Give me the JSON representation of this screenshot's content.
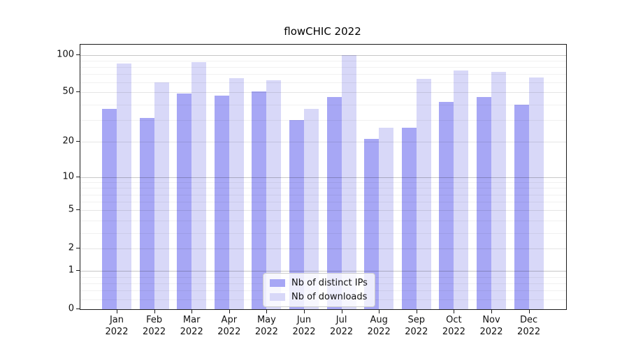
{
  "title": "flowCHIC 2022",
  "chart_data": {
    "type": "bar",
    "title": "flowCHIC 2022",
    "categories": [
      "Jan",
      "Feb",
      "Mar",
      "Apr",
      "May",
      "Jun",
      "Jul",
      "Aug",
      "Sep",
      "Oct",
      "Nov",
      "Dec"
    ],
    "category_year": "2022",
    "series": [
      {
        "name": "Nb of distinct IPs",
        "color": "#a7a7f5",
        "values": [
          37,
          31,
          49,
          47,
          51,
          30,
          46,
          21,
          26,
          42,
          46,
          40
        ]
      },
      {
        "name": "Nb of downloads",
        "color": "#d8d8f8",
        "values": [
          85,
          60,
          88,
          65,
          63,
          37,
          100,
          26,
          64,
          75,
          73,
          66
        ]
      }
    ],
    "yscale": "symlog",
    "ylim": [
      0,
      100
    ],
    "yticks": [
      0,
      1,
      2,
      5,
      10,
      20,
      50,
      100
    ],
    "decade_yticks": [
      1,
      10,
      100
    ],
    "mid_yticks": [
      2,
      5,
      20,
      50
    ],
    "minor_yticks": [
      0.2,
      0.4,
      0.6,
      0.8,
      3,
      4,
      6,
      7,
      8,
      9,
      30,
      40,
      60,
      70,
      80,
      90
    ],
    "grid": true,
    "legend_position": "lower center"
  }
}
